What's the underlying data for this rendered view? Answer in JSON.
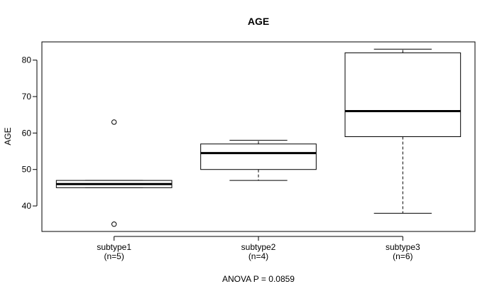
{
  "chart_data": {
    "type": "boxplot",
    "title": "AGE",
    "ylabel": "AGE",
    "xlabel": "",
    "ylim": [
      33,
      85
    ],
    "yticks": [
      40,
      50,
      60,
      70,
      80
    ],
    "grid": false,
    "categories": [
      {
        "name": "subtype1",
        "n_label": "(n=5)",
        "whisker_low": 45,
        "q1": 45,
        "median": 46,
        "q3": 47,
        "whisker_high": 47,
        "outliers": [
          35,
          63
        ]
      },
      {
        "name": "subtype2",
        "n_label": "(n=4)",
        "whisker_low": 47,
        "q1": 50,
        "median": 54.5,
        "q3": 57,
        "whisker_high": 58,
        "outliers": []
      },
      {
        "name": "subtype3",
        "n_label": "(n=6)",
        "whisker_low": 38,
        "q1": 59,
        "median": 66,
        "q3": 82,
        "whisker_high": 83,
        "outliers": []
      }
    ],
    "footer": "ANOVA P = 0.0859"
  }
}
